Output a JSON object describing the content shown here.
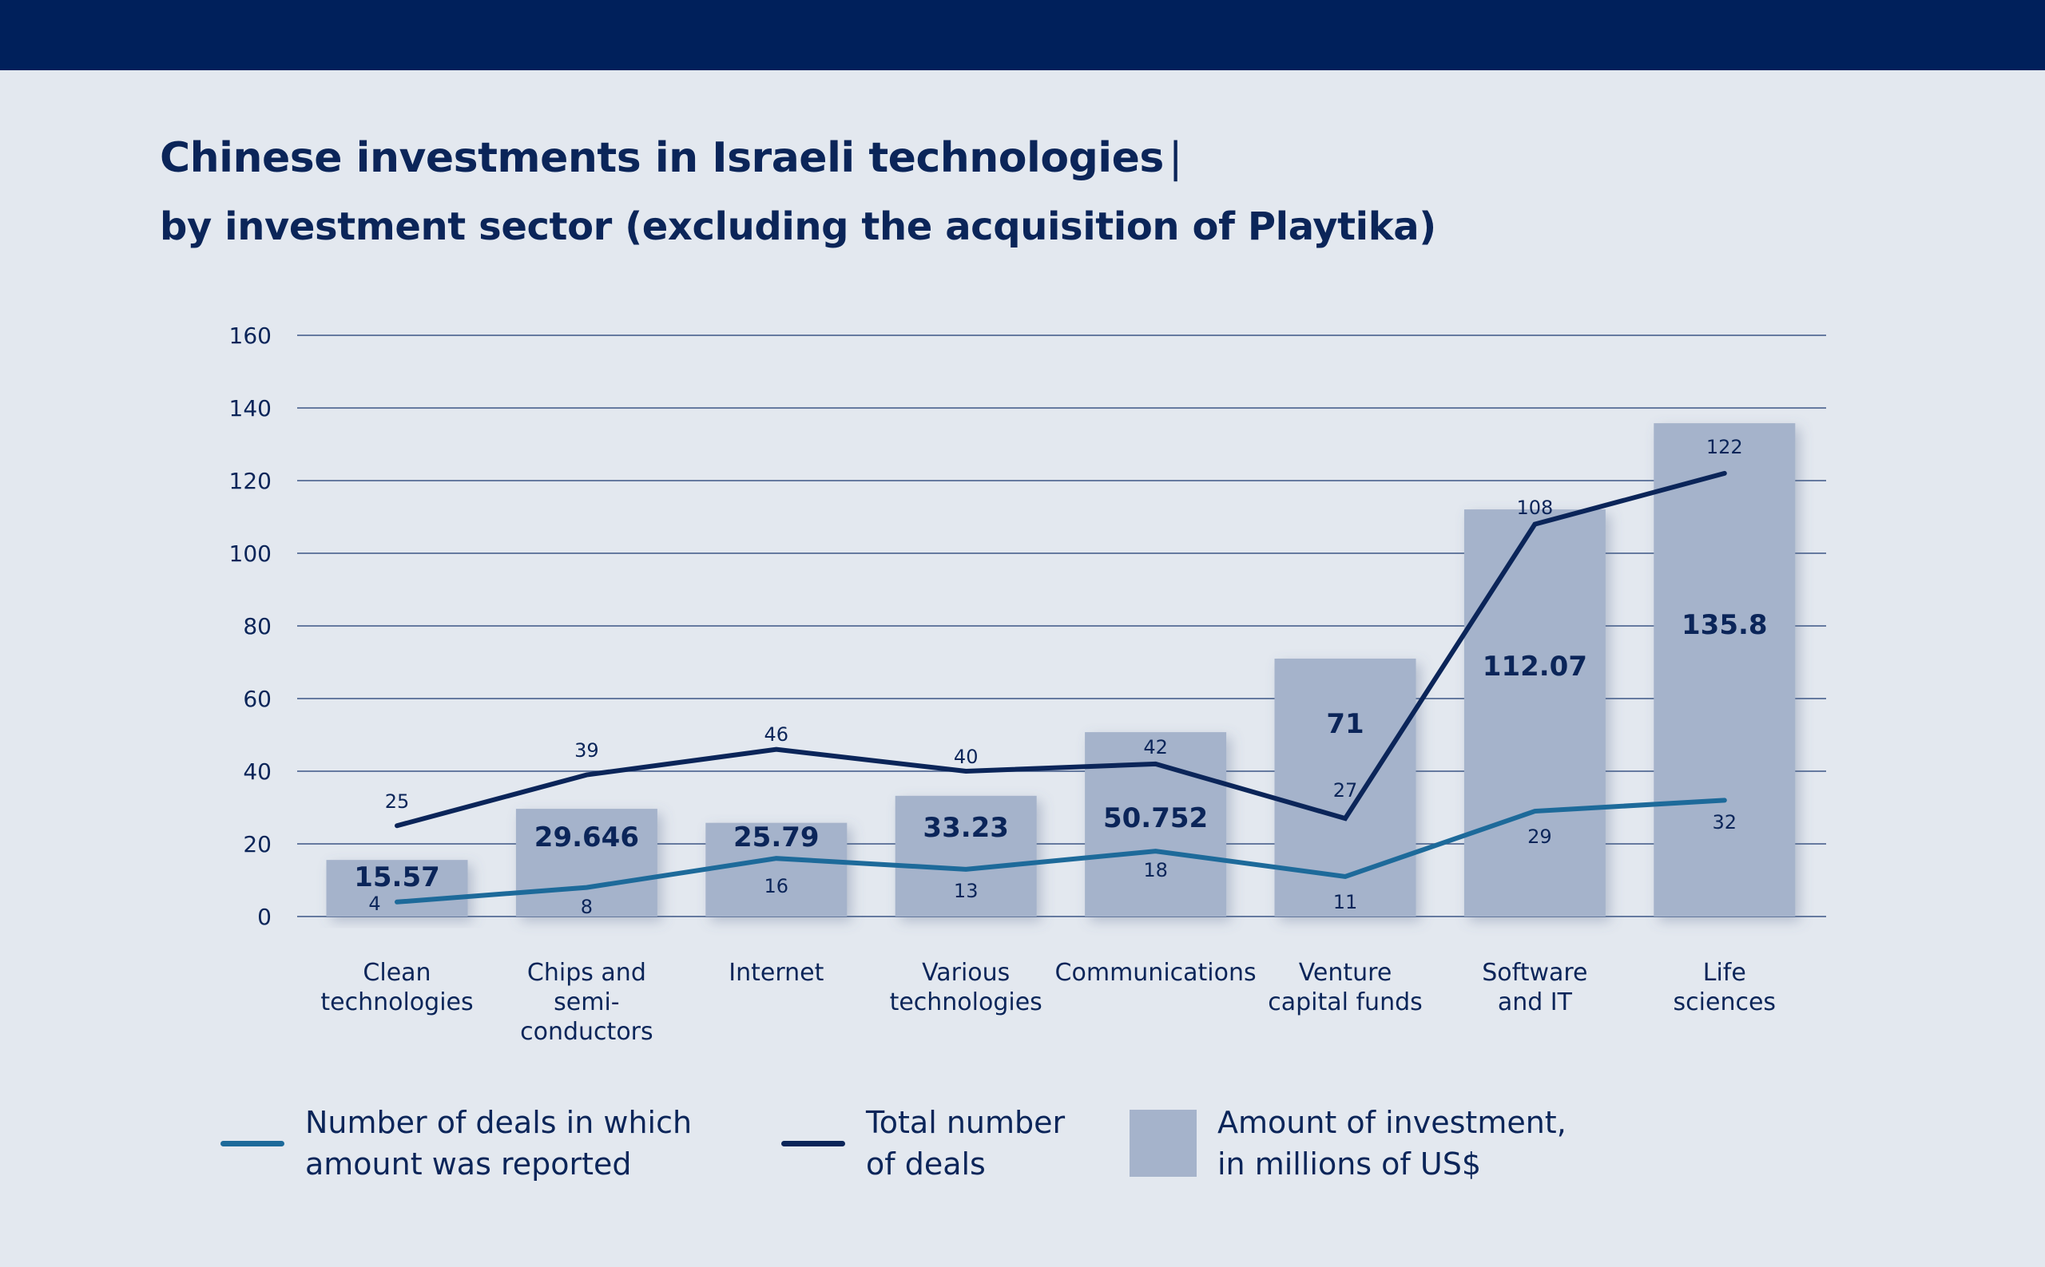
{
  "header": {
    "title": "Chinese investments in Israeli technologies",
    "title_separator": "|",
    "subtitle": "by investment sector (excluding the acquisition of Playtika)"
  },
  "colors": {
    "background": "#e3e8ef",
    "top_bar": "#00205b",
    "bars": "#a5b3cb",
    "total_deals_line": "#0b2559",
    "reported_deals_line": "#1d6a9a",
    "text": "#0b2559"
  },
  "chart_data": {
    "type": "bar",
    "categories": [
      [
        "Clean",
        "technologies"
      ],
      [
        "Chips and",
        "semi-",
        "conductors"
      ],
      [
        "Internet"
      ],
      [
        "Various",
        "technologies"
      ],
      [
        "Communications"
      ],
      [
        "Venture",
        "capital funds"
      ],
      [
        "Software",
        "and IT"
      ],
      [
        "Life",
        "sciences"
      ]
    ],
    "ylim": [
      0,
      160
    ],
    "yticks": [
      0,
      20,
      40,
      60,
      80,
      100,
      120,
      140,
      160
    ],
    "grid": true,
    "series": [
      {
        "name": "Amount of investment, in millions of US$",
        "kind": "bar",
        "values": [
          15.57,
          29.646,
          25.79,
          33.23,
          50.752,
          71,
          112.07,
          135.8
        ],
        "labels": [
          "15.57",
          "29.646",
          "25.79",
          "33.23",
          "50.752",
          "71",
          "112.07",
          "135.8"
        ]
      },
      {
        "name": "Total number of deals",
        "kind": "line",
        "values": [
          25,
          39,
          46,
          40,
          42,
          27,
          108,
          122
        ],
        "labels": [
          "25",
          "39",
          "46",
          "40",
          "42",
          "27",
          "108",
          "122"
        ]
      },
      {
        "name": "Number of deals in which amount was reported",
        "kind": "line",
        "values": [
          4,
          8,
          16,
          13,
          18,
          11,
          29,
          32
        ],
        "labels": [
          "4",
          "8",
          "16",
          "13",
          "18",
          "11",
          "29",
          "32"
        ]
      }
    ],
    "legend_position": "bottom"
  },
  "legend": [
    {
      "label": "Number of deals in which\namount was reported",
      "symbol": "line",
      "color": "#1d6a9a"
    },
    {
      "label": "Total number\nof deals",
      "symbol": "line",
      "color": "#0b2559"
    },
    {
      "label": "Amount of investment,\nin millions of US$",
      "symbol": "box",
      "color": "#a5b3cb"
    }
  ]
}
